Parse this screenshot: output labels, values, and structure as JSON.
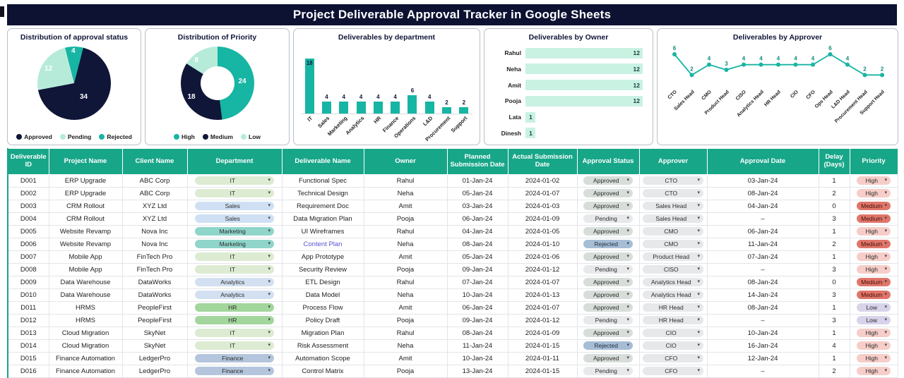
{
  "page": {
    "title": "Project Deliverable Approval Tracker in Google Sheets"
  },
  "icons": {
    "dropdown_chevron": "▾"
  },
  "colors": {
    "accent_teal": "#17b5a3",
    "dark_navy": "#101638",
    "light_mint": "#b6ebd9",
    "table_header_green": "#18a689",
    "banner_navy": "#0d1233",
    "owner_bar_fill": "#c9f2e3"
  },
  "charts": {
    "approval_status": {
      "type": "pie",
      "title": "Distribution of approval status",
      "slices": [
        {
          "label": "Approved",
          "value": 34,
          "color": "#101638"
        },
        {
          "label": "Pending",
          "value": 12,
          "color": "#b6ebd9"
        },
        {
          "label": "Rejected",
          "value": 4,
          "color": "#17b5a3"
        }
      ]
    },
    "priority": {
      "type": "donut",
      "title": "Distribution of Priority",
      "slices": [
        {
          "label": "High",
          "value": 24,
          "color": "#17b5a3"
        },
        {
          "label": "Medium",
          "value": 18,
          "color": "#101638"
        },
        {
          "label": "Low",
          "value": 8,
          "color": "#b6ebd9"
        }
      ]
    },
    "department": {
      "type": "bar",
      "title": "Deliverables by department",
      "categories": [
        "IT",
        "Sales",
        "Marketing",
        "Analytics",
        "HR",
        "Finance",
        "Operations",
        "L&D",
        "Procurement",
        "Support"
      ],
      "values": [
        18,
        4,
        4,
        4,
        4,
        4,
        6,
        4,
        2,
        2
      ]
    },
    "owner": {
      "type": "hbar",
      "title": "Deliverables by Owner",
      "categories": [
        "Rahul",
        "Neha",
        "Amit",
        "Pooja",
        "Lata",
        "Dinesh"
      ],
      "values": [
        12,
        12,
        12,
        12,
        1,
        1
      ],
      "xmax": 12
    },
    "approver": {
      "type": "line",
      "title": "Deliverables by Approver",
      "categories": [
        "CTO",
        "Sales Head",
        "CMO",
        "Product Head",
        "CISO",
        "Analytics Head",
        "HR Head",
        "CIO",
        "CFO",
        "Ops Head",
        "L&D Head",
        "Procurement Head",
        "Support Head"
      ],
      "values": [
        6,
        2,
        4,
        3,
        4,
        4,
        4,
        4,
        4,
        6,
        4,
        2,
        2
      ],
      "ymax": 6
    }
  },
  "table": {
    "headers": [
      "Deliverable ID",
      "Project Name",
      "Client Name",
      "Department",
      "Deliverable Name",
      "Owner",
      "Planned Submission Date",
      "Actual Submission Date",
      "Approval Status",
      "Approver",
      "Approval Date",
      "Delay (Days)",
      "Priority"
    ],
    "pill_colors": {
      "IT": "#dcebd2",
      "Sales": "#cfe0f4",
      "Marketing": "#8fd5ca",
      "Analytics": "#d3e0f1",
      "HR": "#a3d69d",
      "Finance": "#b4c5dd",
      "Approved": "#d7ded9",
      "Pending": "#e7e9ea",
      "Rejected": "#a6bdd6",
      "High": "#f6cdc8",
      "Medium": "#e0756a",
      "Low": "#d8d3ea",
      "approver": "#e6e8ea"
    },
    "pill_text_colors": {
      "Medium": "#46110a",
      "Rejected": "#22303d"
    },
    "rows": [
      {
        "id": "D001",
        "project": "ERP Upgrade",
        "client": "ABC Corp",
        "department": "IT",
        "deliverable": "Functional Spec",
        "owner": "Rahul",
        "planned": "01-Jan-24",
        "actual": "2024-01-02",
        "status": "Approved",
        "approver": "CTO",
        "approval_date": "03-Jan-24",
        "delay": "1",
        "priority": "High"
      },
      {
        "id": "D002",
        "project": "ERP Upgrade",
        "client": "ABC Corp",
        "department": "IT",
        "deliverable": "Technical Design",
        "owner": "Neha",
        "planned": "05-Jan-24",
        "actual": "2024-01-07",
        "status": "Approved",
        "approver": "CTO",
        "approval_date": "08-Jan-24",
        "delay": "2",
        "priority": "High"
      },
      {
        "id": "D003",
        "project": "CRM Rollout",
        "client": "XYZ Ltd",
        "department": "Sales",
        "deliverable": "Requirement Doc",
        "owner": "Amit",
        "planned": "03-Jan-24",
        "actual": "2024-01-03",
        "status": "Approved",
        "approver": "Sales Head",
        "approval_date": "04-Jan-24",
        "delay": "0",
        "priority": "Medium"
      },
      {
        "id": "D004",
        "project": "CRM Rollout",
        "client": "XYZ Ltd",
        "department": "Sales",
        "deliverable": "Data Migration Plan",
        "owner": "Pooja",
        "planned": "06-Jan-24",
        "actual": "2024-01-09",
        "status": "Pending",
        "approver": "Sales Head",
        "approval_date": "–",
        "delay": "3",
        "priority": "Medium"
      },
      {
        "id": "D005",
        "project": "Website Revamp",
        "client": "Nova Inc",
        "department": "Marketing",
        "deliverable": "UI Wireframes",
        "owner": "Rahul",
        "planned": "04-Jan-24",
        "actual": "2024-01-05",
        "status": "Approved",
        "approver": "CMO",
        "approval_date": "06-Jan-24",
        "delay": "1",
        "priority": "High"
      },
      {
        "id": "D006",
        "project": "Website Revamp",
        "client": "Nova Inc",
        "department": "Marketing",
        "deliverable": "Content Plan",
        "link": true,
        "owner": "Neha",
        "planned": "08-Jan-24",
        "actual": "2024-01-10",
        "status": "Rejected",
        "approver": "CMO",
        "approval_date": "11-Jan-24",
        "delay": "2",
        "priority": "Medium"
      },
      {
        "id": "D007",
        "project": "Mobile App",
        "client": "FinTech Pro",
        "department": "IT",
        "deliverable": "App Prototype",
        "owner": "Amit",
        "planned": "05-Jan-24",
        "actual": "2024-01-06",
        "status": "Approved",
        "approver": "Product Head",
        "approval_date": "07-Jan-24",
        "delay": "1",
        "priority": "High"
      },
      {
        "id": "D008",
        "project": "Mobile App",
        "client": "FinTech Pro",
        "department": "IT",
        "deliverable": "Security Review",
        "owner": "Pooja",
        "planned": "09-Jan-24",
        "actual": "2024-01-12",
        "status": "Pending",
        "approver": "CISO",
        "approval_date": "–",
        "delay": "3",
        "priority": "High"
      },
      {
        "id": "D009",
        "project": "Data Warehouse",
        "client": "DataWorks",
        "department": "Analytics",
        "deliverable": "ETL Design",
        "owner": "Rahul",
        "planned": "07-Jan-24",
        "actual": "2024-01-07",
        "status": "Approved",
        "approver": "Analytics Head",
        "approval_date": "08-Jan-24",
        "delay": "0",
        "priority": "Medium"
      },
      {
        "id": "D010",
        "project": "Data Warehouse",
        "client": "DataWorks",
        "department": "Analytics",
        "deliverable": "Data Model",
        "owner": "Neha",
        "planned": "10-Jan-24",
        "actual": "2024-01-13",
        "status": "Approved",
        "approver": "Analytics Head",
        "approval_date": "14-Jan-24",
        "delay": "3",
        "priority": "Medium"
      },
      {
        "id": "D011",
        "project": "HRMS",
        "client": "PeopleFirst",
        "department": "HR",
        "deliverable": "Process Flow",
        "owner": "Amit",
        "planned": "06-Jan-24",
        "actual": "2024-01-07",
        "status": "Approved",
        "approver": "HR Head",
        "approval_date": "08-Jan-24",
        "delay": "1",
        "priority": "Low"
      },
      {
        "id": "D012",
        "project": "HRMS",
        "client": "PeopleFirst",
        "department": "HR",
        "deliverable": "Policy Draft",
        "owner": "Pooja",
        "planned": "09-Jan-24",
        "actual": "2024-01-12",
        "status": "Pending",
        "approver": "HR Head",
        "approval_date": "–",
        "delay": "3",
        "priority": "Low"
      },
      {
        "id": "D013",
        "project": "Cloud Migration",
        "client": "SkyNet",
        "department": "IT",
        "deliverable": "Migration Plan",
        "owner": "Rahul",
        "planned": "08-Jan-24",
        "actual": "2024-01-09",
        "status": "Approved",
        "approver": "CIO",
        "approval_date": "10-Jan-24",
        "delay": "1",
        "priority": "High"
      },
      {
        "id": "D014",
        "project": "Cloud Migration",
        "client": "SkyNet",
        "department": "IT",
        "deliverable": "Risk Assessment",
        "owner": "Neha",
        "planned": "11-Jan-24",
        "actual": "2024-01-15",
        "status": "Rejected",
        "approver": "CIO",
        "approval_date": "16-Jan-24",
        "delay": "4",
        "priority": "High"
      },
      {
        "id": "D015",
        "project": "Finance Automation",
        "client": "LedgerPro",
        "department": "Finance",
        "deliverable": "Automation Scope",
        "owner": "Amit",
        "planned": "10-Jan-24",
        "actual": "2024-01-11",
        "status": "Approved",
        "approver": "CFO",
        "approval_date": "12-Jan-24",
        "delay": "1",
        "priority": "High"
      },
      {
        "id": "D016",
        "project": "Finance Automation",
        "client": "LedgerPro",
        "department": "Finance",
        "deliverable": "Control Matrix",
        "owner": "Pooja",
        "planned": "13-Jan-24",
        "actual": "2024-01-15",
        "status": "Pending",
        "approver": "CFO",
        "approval_date": "–",
        "delay": "2",
        "priority": "High"
      }
    ]
  }
}
